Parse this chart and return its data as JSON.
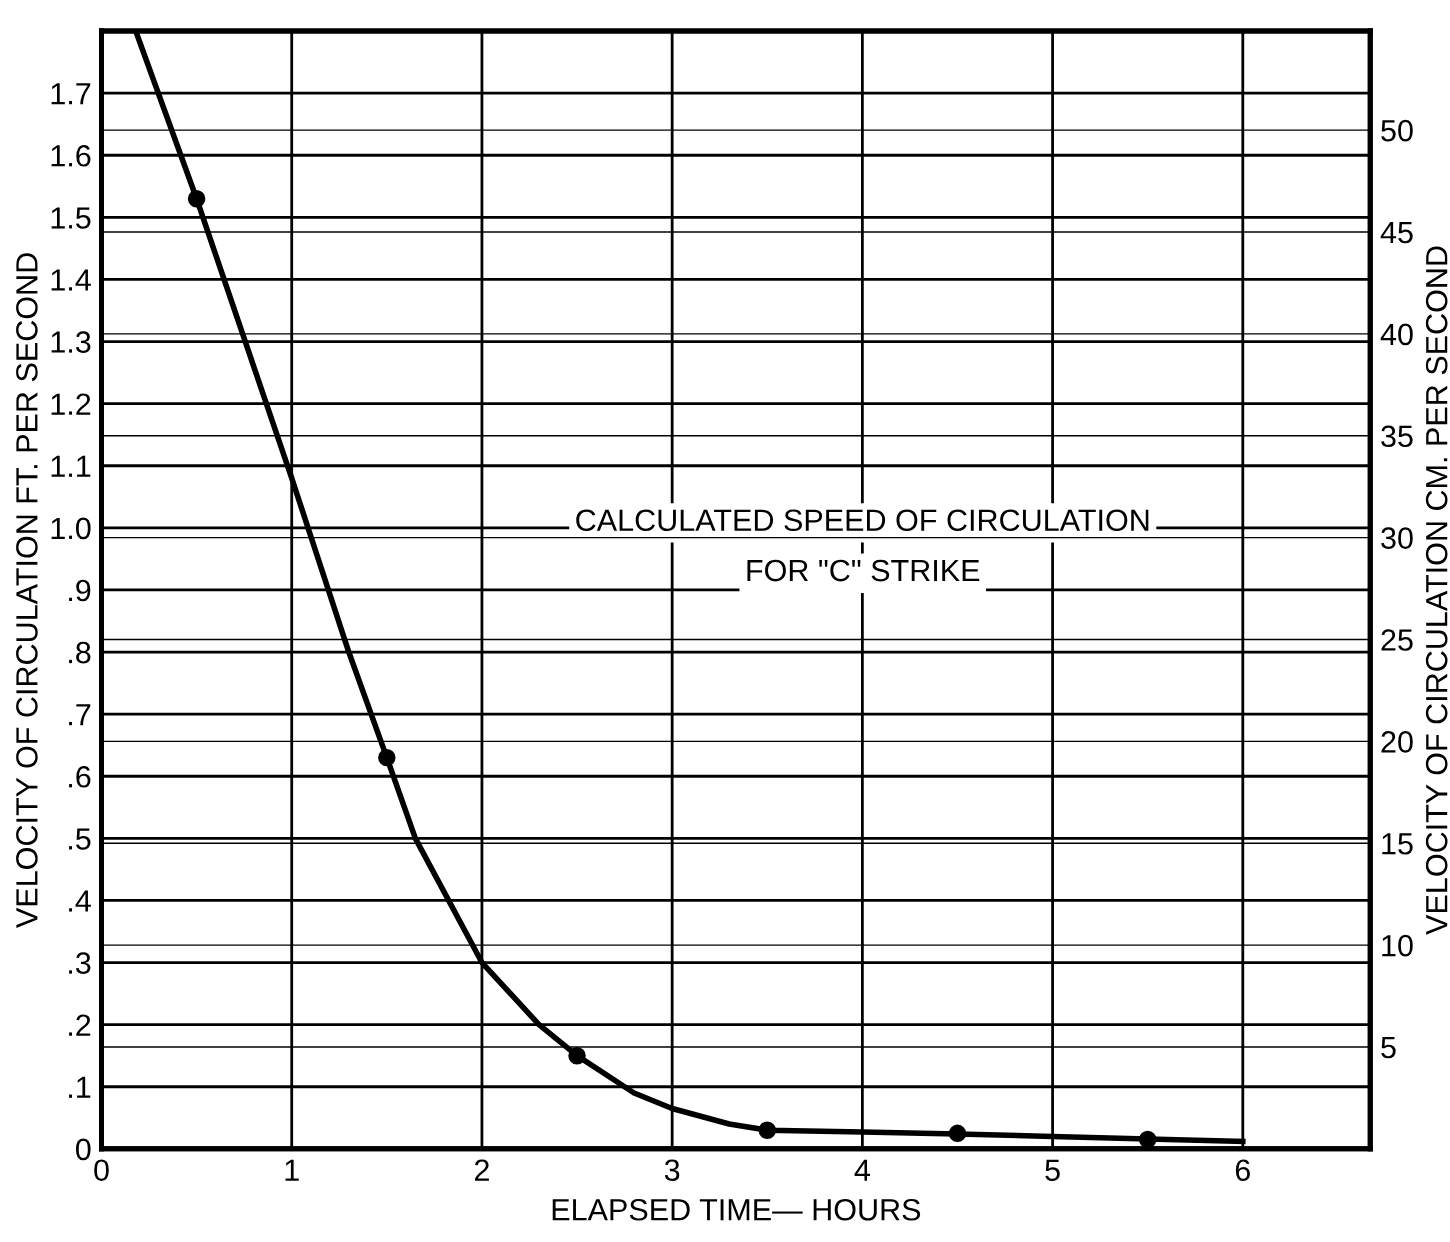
{
  "chart_data": {
    "type": "line",
    "xlabel": "ELAPSED TIME— HOURS",
    "ylabel": "VELOCITY OF CIRCULATION FT. PER SECOND",
    "y2label": "VELOCITY OF CIRCULATION CM. PER SECOND",
    "annotations": [
      "CALCULATED SPEED OF CIRCULATION",
      "FOR \"C\" STRIKE"
    ],
    "series": [
      {
        "color": "#000000",
        "marker": "none",
        "x": [
          0.18,
          0.5,
          1.0,
          1.3,
          1.5,
          1.65,
          2.0,
          2.3,
          2.5,
          2.8,
          3.0,
          3.3,
          3.5,
          4.0,
          4.5,
          5.0,
          5.5,
          6.0
        ],
        "values": [
          1.8,
          1.53,
          1.08,
          0.8,
          0.63,
          0.5,
          0.3,
          0.2,
          0.15,
          0.09,
          0.065,
          0.04,
          0.03,
          0.027,
          0.024,
          0.02,
          0.016,
          0.012
        ]
      },
      {
        "type": "scatter",
        "color": "#000000",
        "marker": "circle",
        "x": [
          0.5,
          1.5,
          2.5,
          3.5,
          4.5,
          5.5
        ],
        "values": [
          1.53,
          0.63,
          0.15,
          0.03,
          0.025,
          0.015
        ]
      }
    ],
    "xlim": [
      0,
      6.67
    ],
    "xticks": [
      0,
      1,
      2,
      3,
      4,
      5,
      6
    ],
    "ylim": [
      0,
      1.8
    ],
    "yticks": [
      0,
      {
        "value": 0.1,
        "label": ".1"
      },
      {
        "value": 0.2,
        "label": ".2"
      },
      {
        "value": 0.3,
        "label": ".3"
      },
      {
        "value": 0.4,
        "label": ".4"
      },
      {
        "value": 0.5,
        "label": ".5"
      },
      {
        "value": 0.6,
        "label": ".6"
      },
      {
        "value": 0.7,
        "label": ".7"
      },
      {
        "value": 0.8,
        "label": ".8"
      },
      {
        "value": 0.9,
        "label": ".9"
      },
      {
        "value": 1.0,
        "label": "1.0"
      },
      {
        "value": 1.1,
        "label": "1.1"
      },
      {
        "value": 1.2,
        "label": "1.2"
      },
      {
        "value": 1.3,
        "label": "1.3"
      },
      {
        "value": 1.4,
        "label": "1.4"
      },
      {
        "value": 1.5,
        "label": "1.5"
      },
      {
        "value": 1.6,
        "label": "1.6"
      },
      {
        "value": 1.7,
        "label": "1.7"
      }
    ],
    "y2lim": [
      0,
      54.86
    ],
    "y2ticks": [
      5,
      10,
      15,
      20,
      25,
      30,
      35,
      40,
      45,
      50
    ],
    "grid": true
  }
}
